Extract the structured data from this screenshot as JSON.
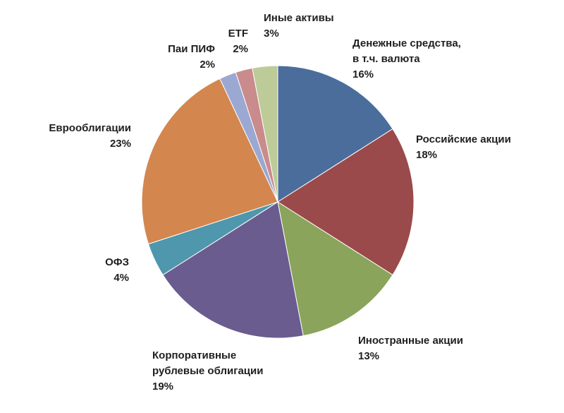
{
  "chart_data": {
    "type": "pie",
    "start_angle_deg": 0,
    "direction": "clockwise",
    "slices": [
      {
        "label": [
          "Денежные средства,",
          "в т.ч. валюта"
        ],
        "value": 16,
        "value_label": "16%",
        "color": "#4a6d9c"
      },
      {
        "label": [
          "Российские акции"
        ],
        "value": 18,
        "value_label": "18%",
        "color": "#9a4a4a"
      },
      {
        "label": [
          "Иностранные акции"
        ],
        "value": 13,
        "value_label": "13%",
        "color": "#8aa45b"
      },
      {
        "label": [
          "Корпоративные",
          "рублевые облигации"
        ],
        "value": 19,
        "value_label": "19%",
        "color": "#6a5c8f"
      },
      {
        "label": [
          "ОФЗ"
        ],
        "value": 4,
        "value_label": "4%",
        "color": "#4f97ad"
      },
      {
        "label": [
          "Еврооблигации"
        ],
        "value": 23,
        "value_label": "23%",
        "color": "#d3864e"
      },
      {
        "label": [
          "Паи ПИФ"
        ],
        "value": 2,
        "value_label": "2%",
        "color": "#9aa8d2"
      },
      {
        "label": [
          "ETF"
        ],
        "value": 2,
        "value_label": "2%",
        "color": "#c98b8b"
      },
      {
        "label": [
          "Иные активы"
        ],
        "value": 3,
        "value_label": "3%",
        "color": "#bccb98"
      }
    ]
  }
}
